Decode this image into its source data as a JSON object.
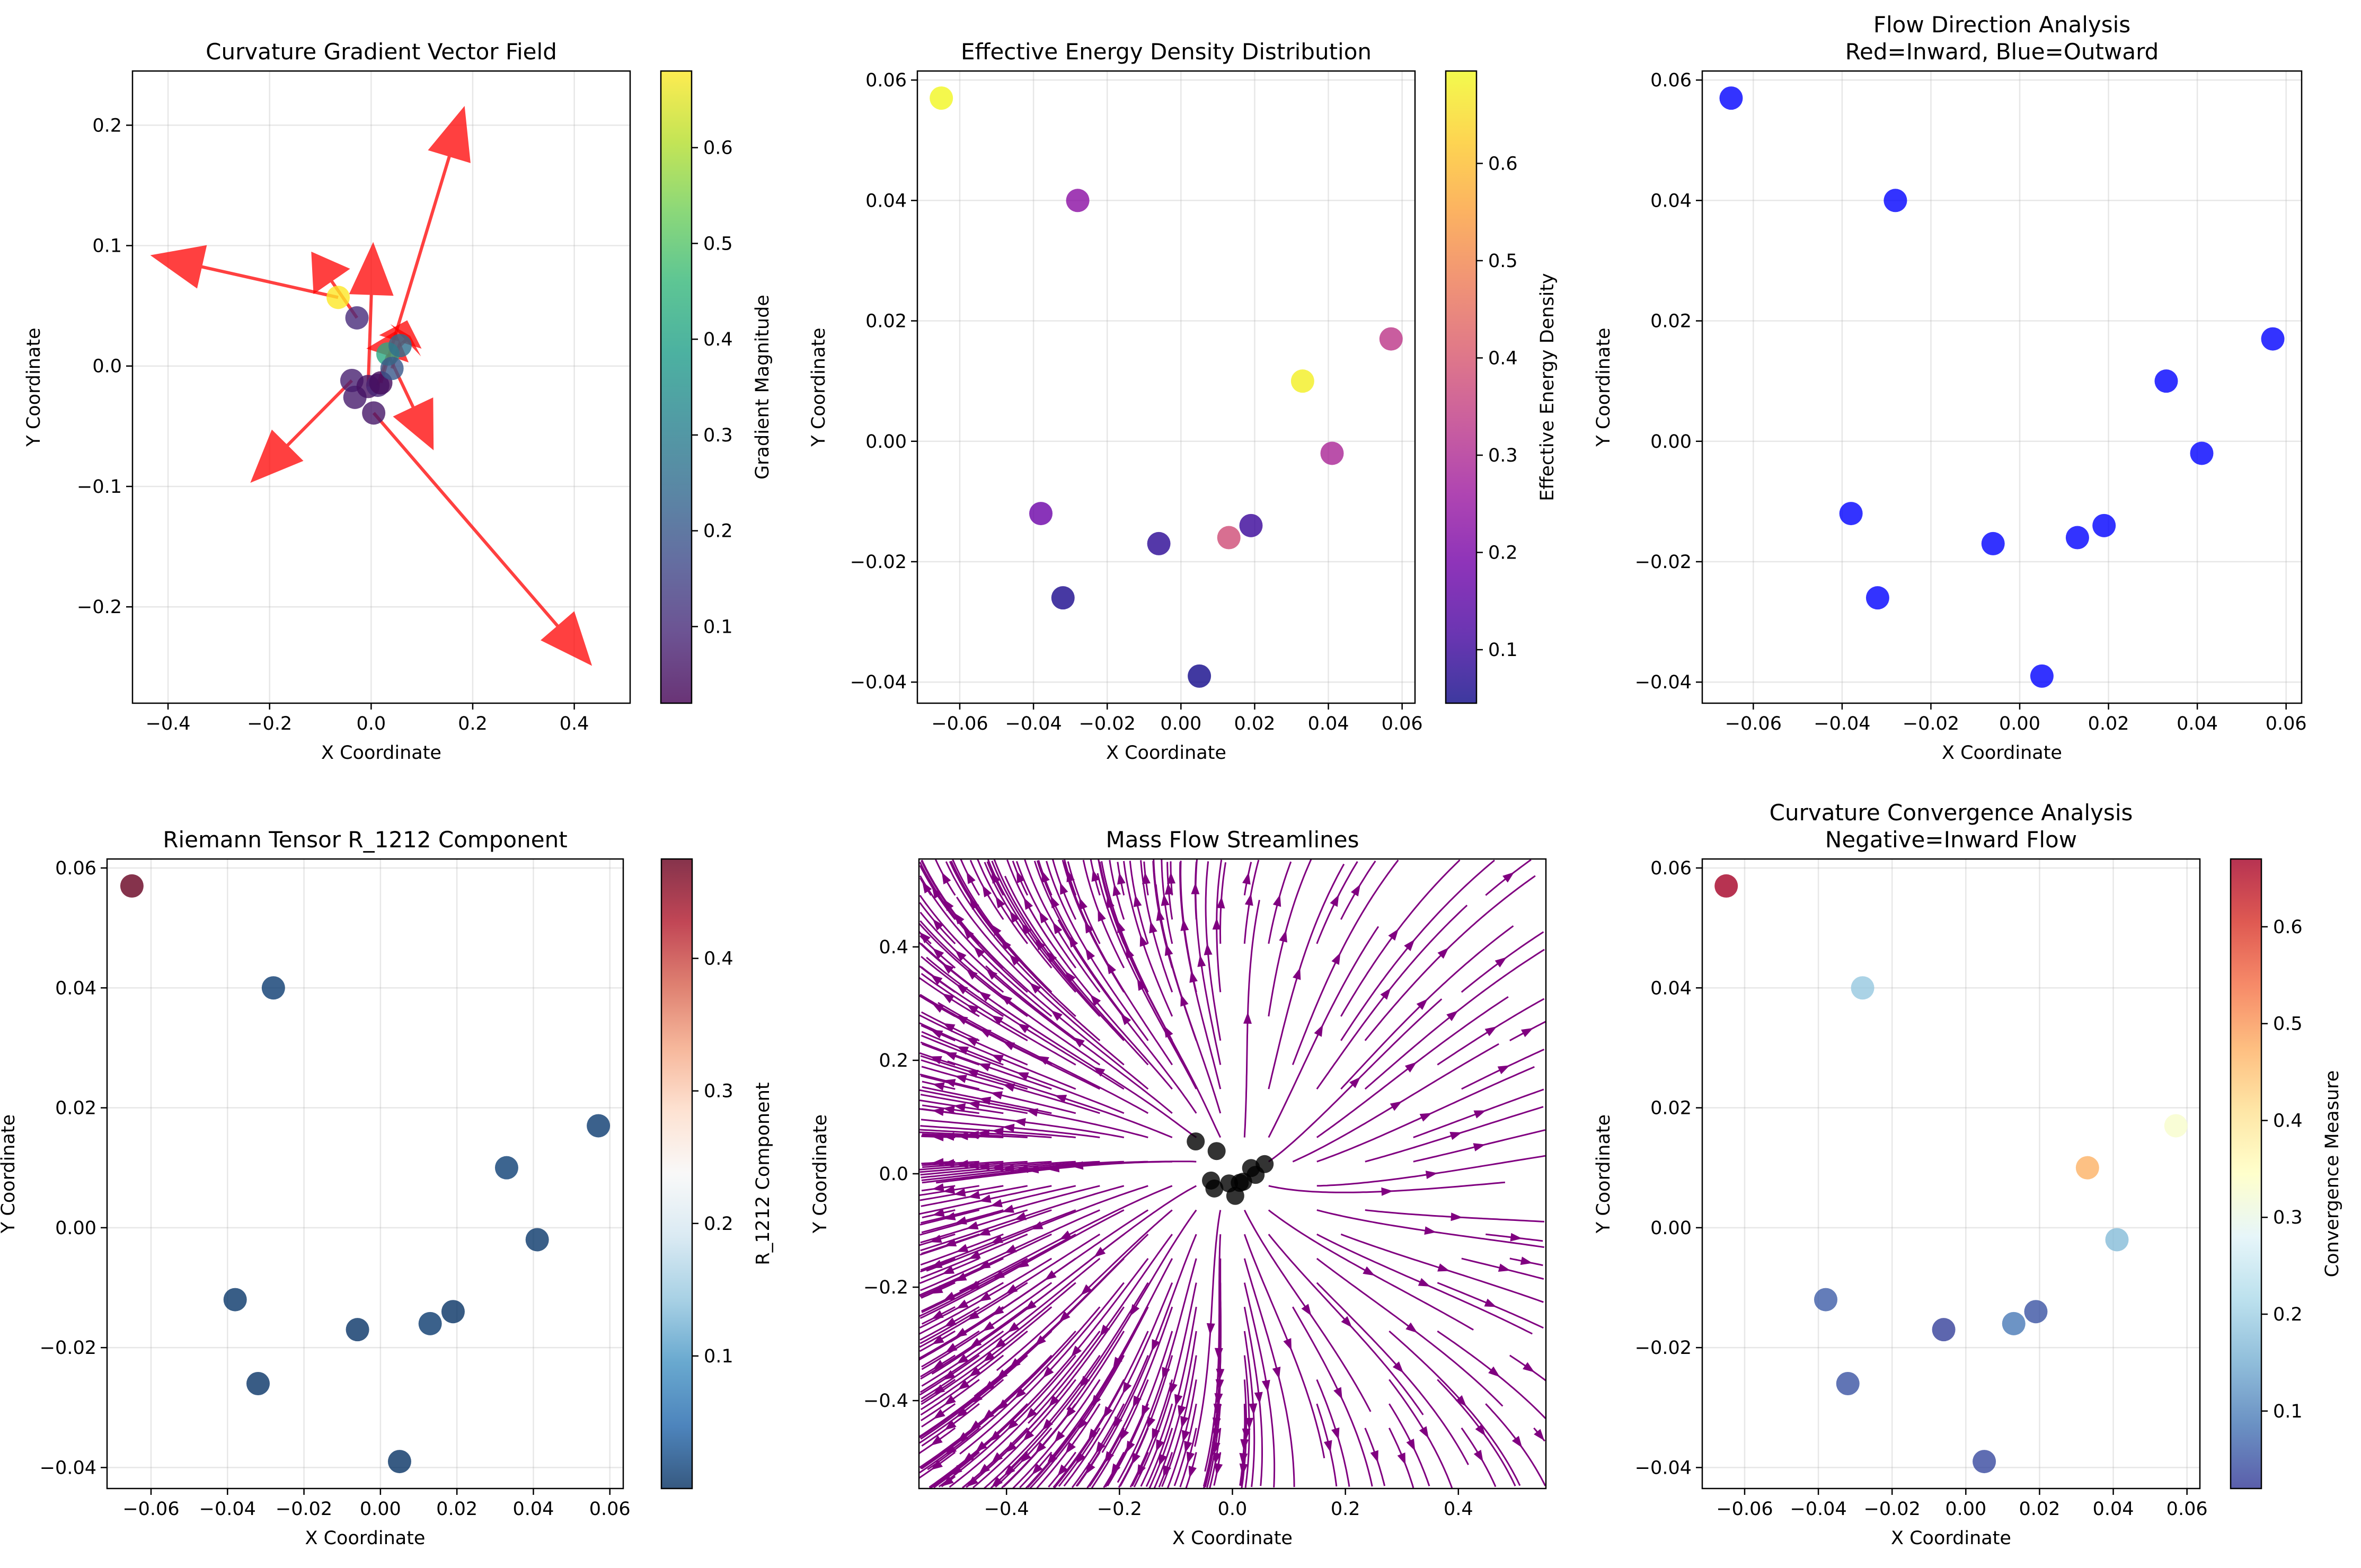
{
  "chart_data": [
    {
      "type": "scatter",
      "title": "Curvature Gradient Vector Field",
      "xlabel": "X Coordinate",
      "ylabel": "Y Coordinate",
      "xlim": [
        -0.47,
        0.51
      ],
      "ylim": [
        -0.28,
        0.245
      ],
      "xticks": [
        -0.4,
        -0.2,
        0.0,
        0.2,
        0.4
      ],
      "xtick_labels": [
        "−0.4",
        "−0.2",
        "0.0",
        "0.2",
        "0.4"
      ],
      "yticks": [
        -0.2,
        -0.1,
        0.0,
        0.1,
        0.2
      ],
      "ytick_labels": [
        "−0.2",
        "−0.1",
        "0.0",
        "0.1",
        "0.2"
      ],
      "grid": true,
      "colormap": "viridis",
      "colorbar": {
        "label": "Gradient Magnitude",
        "range": [
          0.02,
          0.68
        ],
        "ticks": [
          0.1,
          0.2,
          0.3,
          0.4,
          0.5,
          0.6
        ],
        "tick_labels": [
          "0.1",
          "0.2",
          "0.3",
          "0.4",
          "0.5",
          "0.6"
        ]
      },
      "points": [
        {
          "x": -0.065,
          "y": 0.057,
          "c": 0.68
        },
        {
          "x": -0.028,
          "y": 0.04,
          "c": 0.1
        },
        {
          "x": -0.038,
          "y": -0.012,
          "c": 0.08
        },
        {
          "x": -0.032,
          "y": -0.026,
          "c": 0.07
        },
        {
          "x": -0.006,
          "y": -0.017,
          "c": 0.05
        },
        {
          "x": 0.005,
          "y": -0.039,
          "c": 0.06
        },
        {
          "x": 0.013,
          "y": -0.016,
          "c": 0.09
        },
        {
          "x": 0.019,
          "y": -0.014,
          "c": 0.04
        },
        {
          "x": 0.033,
          "y": 0.01,
          "c": 0.42
        },
        {
          "x": 0.041,
          "y": -0.002,
          "c": 0.2
        },
        {
          "x": 0.057,
          "y": 0.017,
          "c": 0.26
        }
      ],
      "arrows": [
        {
          "x": -0.065,
          "y": 0.057,
          "dx": -0.37,
          "dy": 0.035
        },
        {
          "x": -0.028,
          "y": 0.04,
          "dx": -0.09,
          "dy": 0.055
        },
        {
          "x": -0.038,
          "y": -0.012,
          "dx": -0.2,
          "dy": -0.085
        },
        {
          "x": 0.005,
          "y": -0.039,
          "dx": 0.43,
          "dy": -0.21
        },
        {
          "x": 0.019,
          "y": -0.014,
          "dx": 0.165,
          "dy": 0.23
        },
        {
          "x": -0.006,
          "y": -0.017,
          "dx": 0.01,
          "dy": 0.12
        },
        {
          "x": 0.033,
          "y": 0.01,
          "dx": 0.09,
          "dy": -0.08
        },
        {
          "x": 0.041,
          "y": -0.002,
          "dx": 0.03,
          "dy": 0.04
        },
        {
          "x": 0.013,
          "y": -0.016,
          "dx": 0.035,
          "dy": 0.045
        },
        {
          "x": 0.057,
          "y": 0.017,
          "dx": 0.02,
          "dy": 0.008
        }
      ],
      "arrow_color": "#ff0000"
    },
    {
      "type": "scatter",
      "title": "Effective Energy Density Distribution",
      "xlabel": "X Coordinate",
      "ylabel": "Y Coordinate",
      "xlim": [
        -0.0715,
        0.0635
      ],
      "ylim": [
        -0.0435,
        0.0615
      ],
      "xticks": [
        -0.06,
        -0.04,
        -0.02,
        0.0,
        0.02,
        0.04,
        0.06
      ],
      "xtick_labels": [
        "−0.06",
        "−0.04",
        "−0.02",
        "0.00",
        "0.02",
        "0.04",
        "0.06"
      ],
      "yticks": [
        -0.04,
        -0.02,
        0.0,
        0.02,
        0.04,
        0.06
      ],
      "ytick_labels": [
        "−0.04",
        "−0.02",
        "0.00",
        "0.02",
        "0.04",
        "0.06"
      ],
      "grid": true,
      "colormap": "plasma",
      "colorbar": {
        "label": "Effective Energy Density",
        "range": [
          0.045,
          0.695
        ],
        "ticks": [
          0.1,
          0.2,
          0.3,
          0.4,
          0.5,
          0.6
        ],
        "tick_labels": [
          "0.1",
          "0.2",
          "0.3",
          "0.4",
          "0.5",
          "0.6"
        ]
      },
      "points": [
        {
          "x": -0.065,
          "y": 0.057,
          "c": 0.69
        },
        {
          "x": -0.028,
          "y": 0.04,
          "c": 0.23
        },
        {
          "x": -0.038,
          "y": -0.012,
          "c": 0.18
        },
        {
          "x": -0.032,
          "y": -0.026,
          "c": 0.06
        },
        {
          "x": -0.006,
          "y": -0.017,
          "c": 0.08
        },
        {
          "x": 0.005,
          "y": -0.039,
          "c": 0.05
        },
        {
          "x": 0.013,
          "y": -0.016,
          "c": 0.38
        },
        {
          "x": 0.019,
          "y": -0.014,
          "c": 0.1
        },
        {
          "x": 0.033,
          "y": 0.01,
          "c": 0.68
        },
        {
          "x": 0.041,
          "y": -0.002,
          "c": 0.29
        },
        {
          "x": 0.057,
          "y": 0.017,
          "c": 0.33
        }
      ]
    },
    {
      "type": "scatter",
      "title": "Flow Direction Analysis",
      "subtitle": "Red=Inward, Blue=Outward",
      "xlabel": "X Coordinate",
      "ylabel": "Y Coordinate",
      "xlim": [
        -0.0715,
        0.0635
      ],
      "ylim": [
        -0.0435,
        0.0615
      ],
      "xticks": [
        -0.06,
        -0.04,
        -0.02,
        0.0,
        0.02,
        0.04,
        0.06
      ],
      "xtick_labels": [
        "−0.06",
        "−0.04",
        "−0.02",
        "0.00",
        "0.02",
        "0.04",
        "0.06"
      ],
      "yticks": [
        -0.04,
        -0.02,
        0.0,
        0.02,
        0.04,
        0.06
      ],
      "ytick_labels": [
        "−0.04",
        "−0.02",
        "0.00",
        "0.02",
        "0.04",
        "0.06"
      ],
      "grid": true,
      "point_color": "#0000ff",
      "points": [
        {
          "x": -0.065,
          "y": 0.057
        },
        {
          "x": -0.028,
          "y": 0.04
        },
        {
          "x": -0.038,
          "y": -0.012
        },
        {
          "x": -0.032,
          "y": -0.026
        },
        {
          "x": -0.006,
          "y": -0.017
        },
        {
          "x": 0.005,
          "y": -0.039
        },
        {
          "x": 0.013,
          "y": -0.016
        },
        {
          "x": 0.019,
          "y": -0.014
        },
        {
          "x": 0.033,
          "y": 0.01
        },
        {
          "x": 0.041,
          "y": -0.002
        },
        {
          "x": 0.057,
          "y": 0.017
        }
      ]
    },
    {
      "type": "scatter",
      "title": "Riemann Tensor R_1212 Component",
      "xlabel": "X Coordinate",
      "ylabel": "Y Coordinate",
      "xlim": [
        -0.0715,
        0.0635
      ],
      "ylim": [
        -0.0435,
        0.0615
      ],
      "xticks": [
        -0.06,
        -0.04,
        -0.02,
        0.0,
        0.02,
        0.04,
        0.06
      ],
      "xtick_labels": [
        "−0.06",
        "−0.04",
        "−0.02",
        "0.00",
        "0.02",
        "0.04",
        "0.06"
      ],
      "yticks": [
        -0.04,
        -0.02,
        0.0,
        0.02,
        0.04,
        0.06
      ],
      "ytick_labels": [
        "−0.04",
        "−0.02",
        "0.00",
        "0.02",
        "0.04",
        "0.06"
      ],
      "grid": true,
      "colormap": "RdBu_r",
      "colorbar": {
        "label": "R_1212 Component",
        "range": [
          0.0,
          0.475
        ],
        "ticks": [
          0.1,
          0.2,
          0.3,
          0.4
        ],
        "tick_labels": [
          "0.1",
          "0.2",
          "0.3",
          "0.4"
        ]
      },
      "points": [
        {
          "x": -0.065,
          "y": 0.057,
          "c": 0.475
        },
        {
          "x": -0.028,
          "y": 0.04,
          "c": 0.01
        },
        {
          "x": -0.038,
          "y": -0.012,
          "c": 0.005
        },
        {
          "x": -0.032,
          "y": -0.026,
          "c": 0.003
        },
        {
          "x": -0.006,
          "y": -0.017,
          "c": 0.003
        },
        {
          "x": 0.005,
          "y": -0.039,
          "c": 0.002
        },
        {
          "x": 0.013,
          "y": -0.016,
          "c": 0.008
        },
        {
          "x": 0.019,
          "y": -0.014,
          "c": 0.002
        },
        {
          "x": 0.033,
          "y": 0.01,
          "c": 0.012
        },
        {
          "x": 0.041,
          "y": -0.002,
          "c": 0.006
        },
        {
          "x": 0.057,
          "y": 0.017,
          "c": 0.009
        }
      ]
    },
    {
      "type": "streamplot",
      "title": "Mass Flow Streamlines",
      "xlabel": "X Coordinate",
      "ylabel": "Y Coordinate",
      "xlim": [
        -0.555,
        0.555
      ],
      "ylim": [
        -0.555,
        0.555
      ],
      "xticks": [
        -0.4,
        -0.2,
        0.0,
        0.2,
        0.4
      ],
      "xtick_labels": [
        "−0.4",
        "−0.2",
        "0.0",
        "0.2",
        "0.4"
      ],
      "yticks": [
        -0.4,
        -0.2,
        0.0,
        0.2,
        0.4
      ],
      "ytick_labels": [
        "−0.4",
        "−0.2",
        "0.0",
        "0.2",
        "0.4"
      ],
      "grid": false,
      "stream_color": "#800080",
      "point_color": "#000000",
      "points": [
        {
          "x": -0.065,
          "y": 0.057
        },
        {
          "x": -0.028,
          "y": 0.04
        },
        {
          "x": -0.038,
          "y": -0.012
        },
        {
          "x": -0.032,
          "y": -0.026
        },
        {
          "x": -0.006,
          "y": -0.017
        },
        {
          "x": 0.005,
          "y": -0.039
        },
        {
          "x": 0.013,
          "y": -0.016
        },
        {
          "x": 0.019,
          "y": -0.014
        },
        {
          "x": 0.033,
          "y": 0.01
        },
        {
          "x": 0.041,
          "y": -0.002
        },
        {
          "x": 0.057,
          "y": 0.017
        }
      ]
    },
    {
      "type": "scatter",
      "title": "Curvature Convergence Analysis",
      "subtitle": "Negative=Inward Flow",
      "xlabel": "X Coordinate",
      "ylabel": "Y Coordinate",
      "xlim": [
        -0.0715,
        0.0635
      ],
      "ylim": [
        -0.0435,
        0.0615
      ],
      "xticks": [
        -0.06,
        -0.04,
        -0.02,
        0.0,
        0.02,
        0.04,
        0.06
      ],
      "xtick_labels": [
        "−0.06",
        "−0.04",
        "−0.02",
        "0.00",
        "0.02",
        "0.04",
        "0.06"
      ],
      "yticks": [
        -0.04,
        -0.02,
        0.0,
        0.02,
        0.04,
        0.06
      ],
      "ytick_labels": [
        "−0.04",
        "−0.02",
        "0.00",
        "0.02",
        "0.04",
        "0.06"
      ],
      "grid": true,
      "colormap": "RdYlBu_r",
      "colorbar": {
        "label": "Convergence Measure",
        "range": [
          0.02,
          0.67
        ],
        "ticks": [
          0.1,
          0.2,
          0.3,
          0.4,
          0.5,
          0.6
        ],
        "tick_labels": [
          "0.1",
          "0.2",
          "0.3",
          "0.4",
          "0.5",
          "0.6"
        ]
      },
      "points": [
        {
          "x": -0.065,
          "y": 0.057,
          "c": 0.67
        },
        {
          "x": -0.028,
          "y": 0.04,
          "c": 0.19
        },
        {
          "x": -0.038,
          "y": -0.012,
          "c": 0.06
        },
        {
          "x": -0.032,
          "y": -0.026,
          "c": 0.05
        },
        {
          "x": -0.006,
          "y": -0.017,
          "c": 0.03
        },
        {
          "x": 0.005,
          "y": -0.039,
          "c": 0.04
        },
        {
          "x": 0.013,
          "y": -0.016,
          "c": 0.09
        },
        {
          "x": 0.019,
          "y": -0.014,
          "c": 0.05
        },
        {
          "x": 0.033,
          "y": 0.01,
          "c": 0.47
        },
        {
          "x": 0.041,
          "y": -0.002,
          "c": 0.17
        },
        {
          "x": 0.057,
          "y": 0.017,
          "c": 0.33
        }
      ]
    }
  ]
}
